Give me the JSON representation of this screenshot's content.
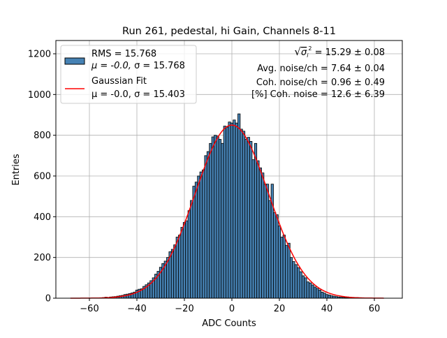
{
  "chart_data": {
    "type": "bar",
    "title": "Run 261, pedestal, hi Gain, Channels 8-11",
    "xlabel": "ADC Counts",
    "ylabel": "Entries",
    "xlim": [
      -74,
      72
    ],
    "ylim": [
      0,
      1260
    ],
    "xticks": [
      -60,
      -40,
      -20,
      0,
      20,
      40,
      60
    ],
    "yticks": [
      0,
      200,
      400,
      600,
      800,
      1000,
      1200
    ],
    "grid": true,
    "bin_width": 1,
    "bin_start": -56,
    "histogram": {
      "color": "#4682b4",
      "edgecolor": "#000000",
      "values": [
        1,
        2,
        3,
        5,
        4,
        6,
        7,
        8,
        10,
        12,
        14,
        18,
        20,
        23,
        26,
        30,
        40,
        44,
        46,
        58,
        66,
        75,
        86,
        100,
        118,
        132,
        152,
        170,
        182,
        200,
        228,
        240,
        262,
        300,
        310,
        348,
        372,
        380,
        430,
        480,
        550,
        570,
        600,
        620,
        630,
        700,
        720,
        760,
        792,
        800,
        796,
        780,
        760,
        845,
        840,
        865,
        860,
        875,
        860,
        905,
        830,
        820,
        780,
        790,
        770,
        680,
        760,
        675,
        640,
        615,
        560,
        560,
        480,
        560,
        420,
        410,
        355,
        300,
        310,
        260,
        270,
        200,
        180,
        165,
        150,
        130,
        110,
        100,
        80,
        75,
        65,
        55,
        48,
        40,
        30,
        25,
        18,
        16,
        12,
        10,
        8,
        6,
        5,
        4,
        3,
        2,
        2,
        1,
        1
      ]
    },
    "fit": {
      "color": "#ff0000",
      "type": "gaussian",
      "amplitude": 850,
      "mu": 0.0,
      "sigma": 15.403,
      "x_range": [
        -68,
        64
      ]
    },
    "legend": {
      "placement": "upper-left",
      "entries": [
        {
          "line1": "RMS = 15.768",
          "line2_mu": "μ = -0.0, ",
          "line2_sigma": "σ = 15.768"
        },
        {
          "line1": "Gaussian Fit",
          "line2_mu": "μ = -0.0, ",
          "line2_sigma": "σ = 15.403"
        }
      ]
    },
    "annotations": {
      "placement": "upper-right",
      "sqrt_sym": "√",
      "sigma": "σ",
      "sub": "i",
      "sup": "2",
      "line1_value": " = 15.29 ± 0.08",
      "line2": "Avg. noise/ch = 7.64 ± 0.04",
      "line3": "Coh. noise/ch = 0.96 ± 0.49",
      "line4": "[%] Coh. noise = 12.6 ± 6.39"
    }
  }
}
